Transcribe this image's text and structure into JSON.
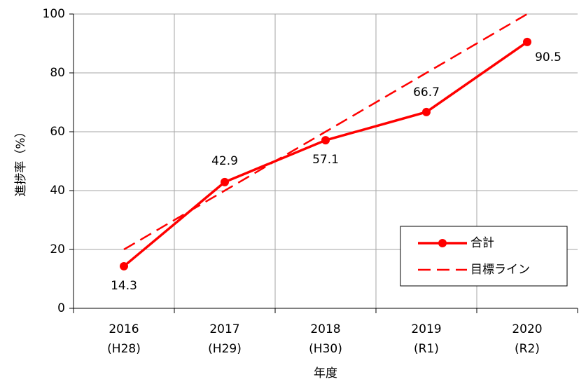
{
  "chart_data": {
    "type": "line",
    "categories": [
      "2016\n(H28)",
      "2017\n(H29)",
      "2018\n(H30)",
      "2019\n(R1)",
      "2020\n(R2)"
    ],
    "series": [
      {
        "name": "合計",
        "color": "#ff0000",
        "values": [
          14.3,
          42.9,
          57.1,
          66.7,
          90.5
        ],
        "style": "solid",
        "markers": true
      },
      {
        "name": "目標ライン",
        "color": "#ff0000",
        "values": [
          20,
          40,
          60,
          80,
          100
        ],
        "style": "dashed",
        "markers": false
      }
    ],
    "ylabel": "進捗率（%）",
    "xlabel": "年度",
    "ylim": [
      0,
      100
    ],
    "yticks": [
      0,
      20,
      40,
      60,
      80,
      100
    ],
    "grid": true,
    "legend": "lower right"
  }
}
